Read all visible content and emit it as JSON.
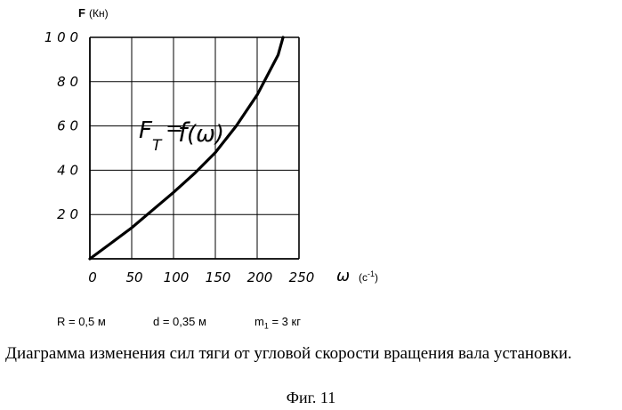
{
  "chart_data": {
    "type": "line",
    "title": "",
    "ylabel_letter": "F",
    "ylabel_unit": "(Кн)",
    "xlabel_symbol": "ω",
    "xlabel_unit": "(с",
    "xlabel_unit_exp": "-1",
    "xlabel_unit_close": ")",
    "xlim": [
      0,
      250
    ],
    "ylim": [
      0,
      100
    ],
    "x_ticks": [
      "0",
      "50",
      "100",
      "150",
      "200",
      "250"
    ],
    "y_ticks": [
      "20",
      "40",
      "60",
      "80",
      "100"
    ],
    "grid": true,
    "annotation": "F_T = f(ω)",
    "series": [
      {
        "x": [
          0,
          25,
          50,
          75,
          100,
          125,
          150,
          175,
          200,
          225,
          231
        ],
        "y": [
          0,
          7,
          14,
          22,
          30,
          38.5,
          48,
          60,
          74,
          92,
          100
        ]
      }
    ]
  },
  "parameters": {
    "R": "R = 0,5 м",
    "d": "d = 0,35 м",
    "m": "m",
    "m_sub": "1",
    "m_rest": " = 3 кг"
  },
  "caption": "Диаграмма изменения сил тяги от угловой скорости вращения вала установки.",
  "figure_label": "Фиг. 11"
}
